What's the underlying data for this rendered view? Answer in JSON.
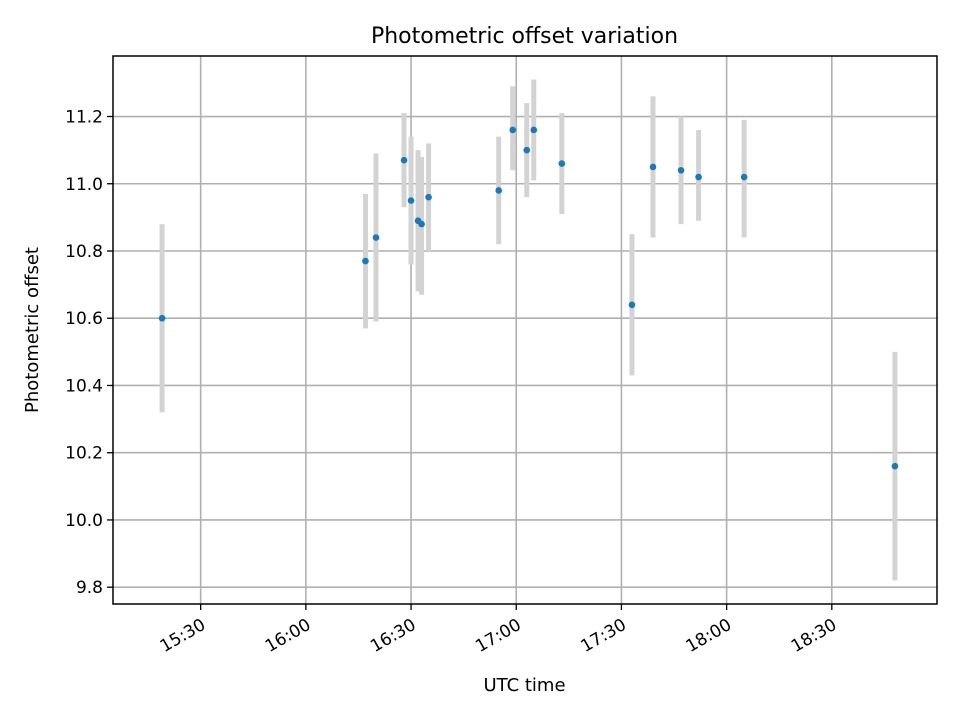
{
  "chart_data": {
    "type": "scatter",
    "title": "Photometric offset variation",
    "xlabel": "UTC time",
    "ylabel": "Photometric offset",
    "x_axis": "time",
    "xlim": [
      "15:05",
      "19:00"
    ],
    "ylim": [
      9.75,
      11.38
    ],
    "grid": true,
    "error_bars": true,
    "colors": {
      "point": "#1f77b4",
      "error_bar": "#d3d3d3",
      "grid": "#b0b0b0"
    },
    "x_ticks": [
      "15:30",
      "16:00",
      "16:30",
      "17:00",
      "17:30",
      "18:00",
      "18:30"
    ],
    "y_ticks": [
      "9.8",
      "10.0",
      "10.2",
      "10.4",
      "10.6",
      "10.8",
      "11.0",
      "11.2"
    ],
    "points": [
      {
        "t": "15:19",
        "y": 10.6,
        "lo": 10.32,
        "hi": 10.88
      },
      {
        "t": "16:17",
        "y": 10.77,
        "lo": 10.57,
        "hi": 10.97
      },
      {
        "t": "16:20",
        "y": 10.84,
        "lo": 10.59,
        "hi": 11.09
      },
      {
        "t": "16:28",
        "y": 11.07,
        "lo": 10.93,
        "hi": 11.21
      },
      {
        "t": "16:30",
        "y": 10.95,
        "lo": 10.76,
        "hi": 11.14
      },
      {
        "t": "16:32",
        "y": 10.89,
        "lo": 10.68,
        "hi": 11.1
      },
      {
        "t": "16:33",
        "y": 10.88,
        "lo": 10.67,
        "hi": 11.08
      },
      {
        "t": "16:35",
        "y": 10.96,
        "lo": 10.8,
        "hi": 11.12
      },
      {
        "t": "16:55",
        "y": 10.98,
        "lo": 10.82,
        "hi": 11.14
      },
      {
        "t": "16:59",
        "y": 11.16,
        "lo": 11.04,
        "hi": 11.29
      },
      {
        "t": "17:03",
        "y": 11.1,
        "lo": 10.96,
        "hi": 11.24
      },
      {
        "t": "17:05",
        "y": 11.16,
        "lo": 11.01,
        "hi": 11.31
      },
      {
        "t": "17:13",
        "y": 11.06,
        "lo": 10.91,
        "hi": 11.21
      },
      {
        "t": "17:33",
        "y": 10.64,
        "lo": 10.43,
        "hi": 10.85
      },
      {
        "t": "17:39",
        "y": 11.05,
        "lo": 10.84,
        "hi": 11.26
      },
      {
        "t": "17:47",
        "y": 11.04,
        "lo": 10.88,
        "hi": 11.2
      },
      {
        "t": "17:52",
        "y": 11.02,
        "lo": 10.89,
        "hi": 11.16
      },
      {
        "t": "18:05",
        "y": 11.02,
        "lo": 10.84,
        "hi": 11.19
      },
      {
        "t": "18:48",
        "y": 10.16,
        "lo": 9.82,
        "hi": 10.5
      }
    ]
  }
}
